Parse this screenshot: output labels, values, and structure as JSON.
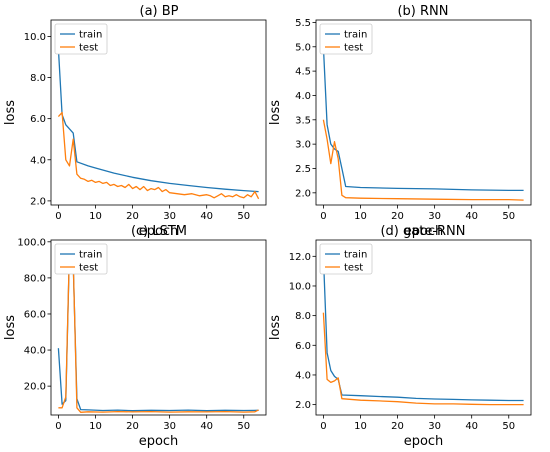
{
  "colors": {
    "train": "#1f77b4",
    "test": "#ff7f0e"
  },
  "chart_data": [
    {
      "type": "line",
      "title": "(a)  BP",
      "xlabel": "epoch",
      "ylabel": "loss",
      "xlim": [
        -2,
        56
      ],
      "ylim": [
        1.8,
        10.8
      ],
      "xticks": [
        0,
        10,
        20,
        30,
        40,
        50
      ],
      "yticks": [
        2.0,
        4.0,
        6.0,
        8.0,
        10.0
      ],
      "ytick_labels": [
        "2.0",
        "4.0",
        "6.0",
        "8.0",
        "10.0"
      ],
      "grid": false,
      "legend_position": "top-left",
      "series": [
        {
          "name": "train",
          "color_key": "train",
          "points": [
            [
              0,
              9.4
            ],
            [
              1,
              6.2
            ],
            [
              2,
              5.7
            ],
            [
              3,
              5.5
            ],
            [
              4,
              5.3
            ],
            [
              5,
              3.9
            ],
            [
              8,
              3.7
            ],
            [
              10,
              3.6
            ],
            [
              15,
              3.35
            ],
            [
              20,
              3.15
            ],
            [
              25,
              2.98
            ],
            [
              30,
              2.85
            ],
            [
              35,
              2.75
            ],
            [
              40,
              2.65
            ],
            [
              45,
              2.57
            ],
            [
              50,
              2.5
            ],
            [
              54,
              2.45
            ]
          ]
        },
        {
          "name": "test",
          "color_key": "test",
          "points": [
            [
              0,
              6.1
            ],
            [
              1,
              6.3
            ],
            [
              2,
              4.0
            ],
            [
              3,
              3.7
            ],
            [
              4,
              5.0
            ],
            [
              5,
              3.3
            ],
            [
              6,
              3.1
            ],
            [
              7,
              3.05
            ],
            [
              8,
              2.95
            ],
            [
              9,
              3.0
            ],
            [
              10,
              2.9
            ],
            [
              11,
              2.95
            ],
            [
              12,
              2.85
            ],
            [
              13,
              2.9
            ],
            [
              14,
              2.75
            ],
            [
              15,
              2.8
            ],
            [
              16,
              2.7
            ],
            [
              17,
              2.75
            ],
            [
              18,
              2.65
            ],
            [
              19,
              2.8
            ],
            [
              20,
              2.6
            ],
            [
              21,
              2.7
            ],
            [
              22,
              2.55
            ],
            [
              23,
              2.7
            ],
            [
              24,
              2.5
            ],
            [
              25,
              2.6
            ],
            [
              26,
              2.55
            ],
            [
              27,
              2.65
            ],
            [
              28,
              2.45
            ],
            [
              29,
              2.55
            ],
            [
              30,
              2.4
            ],
            [
              32,
              2.35
            ],
            [
              34,
              2.3
            ],
            [
              36,
              2.35
            ],
            [
              38,
              2.25
            ],
            [
              40,
              2.3
            ],
            [
              41,
              2.25
            ],
            [
              42,
              2.15
            ],
            [
              43,
              2.25
            ],
            [
              44,
              2.35
            ],
            [
              45,
              2.2
            ],
            [
              46,
              2.25
            ],
            [
              47,
              2.2
            ],
            [
              48,
              2.3
            ],
            [
              49,
              2.2
            ],
            [
              50,
              2.15
            ],
            [
              51,
              2.3
            ],
            [
              52,
              2.2
            ],
            [
              53,
              2.45
            ],
            [
              54,
              2.1
            ]
          ]
        }
      ]
    },
    {
      "type": "line",
      "title": "(b)  RNN",
      "xlabel": "epoch",
      "ylabel": "loss",
      "xlim": [
        -2,
        56
      ],
      "ylim": [
        1.75,
        5.55
      ],
      "xticks": [
        0,
        10,
        20,
        30,
        40,
        50
      ],
      "yticks": [
        2.0,
        2.5,
        3.0,
        3.5,
        4.0,
        4.5,
        5.0,
        5.5
      ],
      "ytick_labels": [
        "2.0",
        "2.5",
        "3.0",
        "3.5",
        "4.0",
        "4.5",
        "5.0",
        "5.5"
      ],
      "grid": false,
      "legend_position": "top-left",
      "series": [
        {
          "name": "train",
          "color_key": "train",
          "points": [
            [
              0,
              5.0
            ],
            [
              1,
              3.4
            ],
            [
              2,
              3.0
            ],
            [
              3,
              2.9
            ],
            [
              4,
              2.85
            ],
            [
              5,
              2.5
            ],
            [
              6,
              2.13
            ],
            [
              10,
              2.11
            ],
            [
              20,
              2.09
            ],
            [
              30,
              2.08
            ],
            [
              40,
              2.06
            ],
            [
              50,
              2.05
            ],
            [
              54,
              2.05
            ]
          ]
        },
        {
          "name": "test",
          "color_key": "test",
          "points": [
            [
              0,
              3.5
            ],
            [
              1,
              3.1
            ],
            [
              2,
              2.6
            ],
            [
              3,
              3.05
            ],
            [
              4,
              2.7
            ],
            [
              5,
              1.95
            ],
            [
              6,
              1.9
            ],
            [
              10,
              1.89
            ],
            [
              20,
              1.88
            ],
            [
              30,
              1.87
            ],
            [
              40,
              1.86
            ],
            [
              50,
              1.86
            ],
            [
              54,
              1.85
            ]
          ]
        }
      ]
    },
    {
      "type": "line",
      "title": "(c)  LSTM",
      "xlabel": "epoch",
      "ylabel": "loss",
      "xlim": [
        -2,
        56
      ],
      "ylim": [
        4,
        101
      ],
      "xticks": [
        0,
        10,
        20,
        30,
        40,
        50
      ],
      "yticks": [
        20.0,
        40.0,
        60.0,
        80.0,
        100.0
      ],
      "ytick_labels": [
        "20.0",
        "40.0",
        "60.0",
        "80.0",
        "100.0"
      ],
      "grid": false,
      "legend_position": "top-left",
      "series": [
        {
          "name": "train",
          "color_key": "train",
          "points": [
            [
              0,
              41
            ],
            [
              1,
              10
            ],
            [
              2,
              12
            ],
            [
              3,
              96
            ],
            [
              4,
              88
            ],
            [
              5,
              13
            ],
            [
              6,
              7
            ],
            [
              8,
              6.8
            ],
            [
              12,
              6.5
            ],
            [
              16,
              6.7
            ],
            [
              20,
              6.4
            ],
            [
              25,
              6.6
            ],
            [
              30,
              6.5
            ],
            [
              35,
              6.7
            ],
            [
              40,
              6.4
            ],
            [
              45,
              6.6
            ],
            [
              50,
              6.5
            ],
            [
              54,
              6.6
            ]
          ]
        },
        {
          "name": "test",
          "color_key": "test",
          "points": [
            [
              0,
              8
            ],
            [
              1,
              8
            ],
            [
              2,
              14
            ],
            [
              3,
              97
            ],
            [
              4,
              90
            ],
            [
              5,
              8
            ],
            [
              6,
              5.5
            ],
            [
              8,
              5.8
            ],
            [
              12,
              5.6
            ],
            [
              16,
              5.9
            ],
            [
              20,
              5.7
            ],
            [
              25,
              5.9
            ],
            [
              30,
              5.6
            ],
            [
              35,
              5.8
            ],
            [
              40,
              5.7
            ],
            [
              45,
              5.9
            ],
            [
              50,
              5.6
            ],
            [
              53,
              5.8
            ],
            [
              54,
              6.8
            ]
          ]
        }
      ]
    },
    {
      "type": "line",
      "title": "(d)  gate-RNN",
      "xlabel": "epoch",
      "ylabel": "loss",
      "xlim": [
        -2,
        56
      ],
      "ylim": [
        1.3,
        13.1
      ],
      "xticks": [
        0,
        10,
        20,
        30,
        40,
        50
      ],
      "yticks": [
        2.0,
        4.0,
        6.0,
        8.0,
        10.0,
        12.0
      ],
      "ytick_labels": [
        "2.0",
        "4.0",
        "6.0",
        "8.0",
        "10.0",
        "12.0"
      ],
      "grid": false,
      "legend_position": "top-left",
      "series": [
        {
          "name": "train",
          "color_key": "train",
          "points": [
            [
              0,
              12.0
            ],
            [
              1,
              5.5
            ],
            [
              2,
              4.3
            ],
            [
              3,
              3.9
            ],
            [
              4,
              3.7
            ],
            [
              5,
              2.65
            ],
            [
              10,
              2.6
            ],
            [
              15,
              2.55
            ],
            [
              20,
              2.5
            ],
            [
              25,
              2.42
            ],
            [
              30,
              2.38
            ],
            [
              35,
              2.35
            ],
            [
              40,
              2.32
            ],
            [
              45,
              2.3
            ],
            [
              50,
              2.28
            ],
            [
              54,
              2.28
            ]
          ]
        },
        {
          "name": "test",
          "color_key": "test",
          "points": [
            [
              0,
              8.2
            ],
            [
              1,
              3.7
            ],
            [
              2,
              3.5
            ],
            [
              3,
              3.6
            ],
            [
              4,
              3.8
            ],
            [
              5,
              2.4
            ],
            [
              10,
              2.3
            ],
            [
              15,
              2.25
            ],
            [
              20,
              2.2
            ],
            [
              25,
              2.1
            ],
            [
              30,
              2.05
            ],
            [
              35,
              2.05
            ],
            [
              40,
              2.02
            ],
            [
              45,
              2.0
            ],
            [
              50,
              2.0
            ],
            [
              54,
              2.0
            ]
          ]
        }
      ]
    }
  ]
}
